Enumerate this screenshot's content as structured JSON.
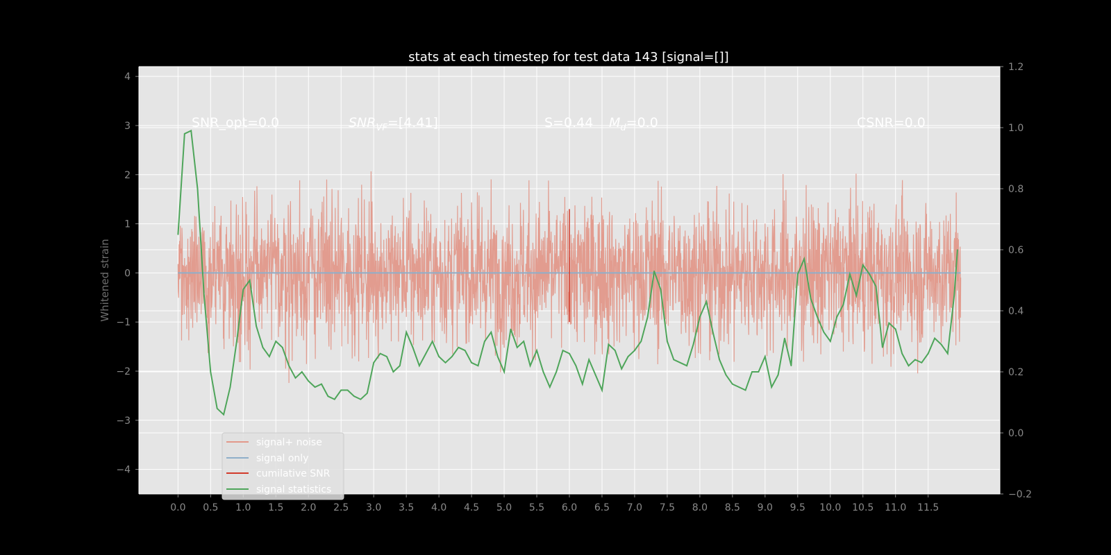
{
  "chart_data": {
    "type": "line",
    "title": "stats at each timestep for test data 143 [signal=[]]",
    "ylabel": "Whitened strain",
    "y2label": "",
    "xlim": [
      -0.6,
      12.6
    ],
    "ylim": [
      -4.5,
      4.2
    ],
    "y2lim": [
      -0.2,
      1.2
    ],
    "xticks": [
      "0.0",
      "0.5",
      "1.0",
      "1.5",
      "2.0",
      "2.5",
      "3.0",
      "3.5",
      "4.0",
      "4.5",
      "5.0",
      "5.5",
      "6.0",
      "6.5",
      "7.0",
      "7.5",
      "8.0",
      "8.5",
      "9.0",
      "9.5",
      "10.0",
      "10.5",
      "11.0",
      "11.5"
    ],
    "yticks": [
      "4",
      "3",
      "2",
      "1",
      "0",
      "−1",
      "−2",
      "−3",
      "−4"
    ],
    "y2ticks": [
      "1.2",
      "1.0",
      "0.8",
      "0.6",
      "0.4",
      "0.2",
      "0.0",
      "−0.2"
    ],
    "grid": true,
    "colors": {
      "background": "#000000",
      "axes_face": "#e5e5e5",
      "grid": "#ffffff",
      "noise": "#e2988a",
      "signal": "#8eaec9",
      "snr": "#d23a2a",
      "stats": "#4ea55a"
    },
    "annotations": {
      "snr_opt": "SNR_opt=0.0",
      "snr_vf_prefix": "SNR",
      "snr_vf_sub": "VF",
      "snr_vf_suffix": "=[4.41]",
      "s_value": "S=0.44",
      "m_prefix": "M",
      "m_sub": "d",
      "m_suffix": "=0.0",
      "csnr": "CSNR=0.0"
    },
    "legend": {
      "location": "lower-left",
      "entries": [
        "signal+ noise",
        "signal only",
        "cumilative SNR",
        "signal statistics"
      ]
    },
    "series": [
      {
        "name": "signal statistics",
        "axis": "right",
        "x": [
          0.0,
          0.1,
          0.2,
          0.3,
          0.4,
          0.5,
          0.6,
          0.7,
          0.8,
          0.9,
          1.0,
          1.1,
          1.2,
          1.3,
          1.4,
          1.5,
          1.6,
          1.7,
          1.8,
          1.9,
          2.0,
          2.1,
          2.2,
          2.3,
          2.4,
          2.5,
          2.6,
          2.7,
          2.8,
          2.9,
          3.0,
          3.1,
          3.2,
          3.3,
          3.4,
          3.5,
          3.6,
          3.7,
          3.8,
          3.9,
          4.0,
          4.1,
          4.2,
          4.3,
          4.4,
          4.5,
          4.6,
          4.7,
          4.8,
          4.9,
          5.0,
          5.1,
          5.2,
          5.3,
          5.4,
          5.5,
          5.6,
          5.7,
          5.8,
          5.9,
          6.0,
          6.1,
          6.2,
          6.3,
          6.4,
          6.5,
          6.6,
          6.7,
          6.8,
          6.9,
          7.0,
          7.1,
          7.2,
          7.3,
          7.4,
          7.5,
          7.6,
          7.7,
          7.8,
          7.9,
          8.0,
          8.1,
          8.2,
          8.3,
          8.4,
          8.5,
          8.6,
          8.7,
          8.8,
          8.9,
          9.0,
          9.1,
          9.2,
          9.3,
          9.4,
          9.5,
          9.6,
          9.7,
          9.8,
          9.9,
          10.0,
          10.1,
          10.2,
          10.3,
          10.4,
          10.5,
          10.6,
          10.7,
          10.8,
          10.9,
          11.0,
          11.1,
          11.2,
          11.3,
          11.4,
          11.5,
          11.6,
          11.7,
          11.8,
          11.9,
          11.95
        ],
        "values": [
          0.65,
          0.98,
          0.99,
          0.8,
          0.45,
          0.2,
          0.08,
          0.06,
          0.15,
          0.3,
          0.47,
          0.5,
          0.35,
          0.28,
          0.25,
          0.3,
          0.28,
          0.22,
          0.18,
          0.2,
          0.17,
          0.15,
          0.16,
          0.12,
          0.11,
          0.14,
          0.14,
          0.12,
          0.11,
          0.13,
          0.23,
          0.26,
          0.25,
          0.2,
          0.22,
          0.33,
          0.28,
          0.22,
          0.26,
          0.3,
          0.25,
          0.23,
          0.25,
          0.28,
          0.27,
          0.23,
          0.22,
          0.3,
          0.33,
          0.25,
          0.2,
          0.34,
          0.28,
          0.3,
          0.22,
          0.27,
          0.2,
          0.15,
          0.2,
          0.27,
          0.26,
          0.22,
          0.16,
          0.24,
          0.19,
          0.14,
          0.29,
          0.27,
          0.21,
          0.25,
          0.27,
          0.3,
          0.38,
          0.53,
          0.47,
          0.3,
          0.24,
          0.23,
          0.22,
          0.29,
          0.38,
          0.43,
          0.33,
          0.24,
          0.19,
          0.16,
          0.15,
          0.14,
          0.2,
          0.2,
          0.25,
          0.15,
          0.19,
          0.31,
          0.22,
          0.52,
          0.57,
          0.44,
          0.38,
          0.33,
          0.3,
          0.38,
          0.42,
          0.52,
          0.45,
          0.55,
          0.52,
          0.48,
          0.28,
          0.36,
          0.34,
          0.26,
          0.22,
          0.24,
          0.23,
          0.26,
          0.31,
          0.29,
          0.26,
          0.45,
          0.6
        ]
      }
    ]
  }
}
